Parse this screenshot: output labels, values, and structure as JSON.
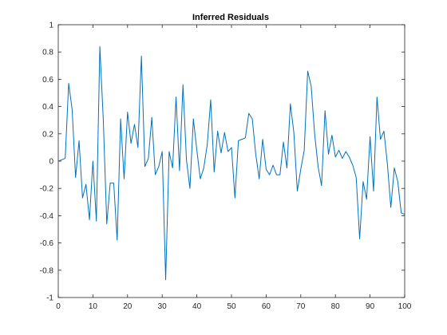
{
  "chart_data": {
    "type": "line",
    "title": "Inferred Residuals",
    "xlabel": "",
    "ylabel": "",
    "xlim": [
      0,
      100
    ],
    "ylim": [
      -1,
      1
    ],
    "x_ticks": [
      0,
      10,
      20,
      30,
      40,
      50,
      60,
      70,
      80,
      90,
      100
    ],
    "y_ticks": [
      -1,
      -0.8,
      -0.6,
      -0.4,
      -0.2,
      0,
      0.2,
      0.4,
      0.6,
      0.8,
      1
    ],
    "grid": false,
    "legend": "none",
    "series": [
      {
        "color": "#0072bd",
        "x": [
          0,
          1,
          2,
          3,
          4,
          5,
          6,
          7,
          8,
          9,
          10,
          11,
          12,
          13,
          14,
          15,
          16,
          17,
          18,
          19,
          20,
          21,
          22,
          23,
          24,
          25,
          26,
          27,
          28,
          29,
          30,
          31,
          32,
          33,
          34,
          35,
          36,
          37,
          38,
          39,
          40,
          41,
          42,
          43,
          44,
          45,
          46,
          47,
          48,
          49,
          50,
          51,
          52,
          53,
          54,
          55,
          56,
          57,
          58,
          59,
          60,
          61,
          62,
          63,
          64,
          65,
          66,
          67,
          68,
          69,
          70,
          71,
          72,
          73,
          74,
          75,
          76,
          77,
          78,
          79,
          80,
          81,
          82,
          83,
          84,
          85,
          86,
          87,
          88,
          89,
          90,
          91,
          92,
          93,
          94,
          95,
          96,
          97,
          98,
          99,
          100
        ],
        "values": [
          0,
          0.01,
          0.02,
          0.57,
          0.38,
          -0.12,
          0.15,
          -0.27,
          -0.17,
          -0.43,
          0,
          -0.44,
          0.84,
          0.3,
          -0.46,
          -0.16,
          -0.16,
          -0.58,
          0.31,
          -0.13,
          0.36,
          0.13,
          0.27,
          0.1,
          0.77,
          -0.04,
          0.02,
          0.32,
          -0.1,
          -0.04,
          0.07,
          -0.87,
          0.07,
          -0.05,
          0.47,
          -0.07,
          0.56,
          0.01,
          -0.2,
          0.31,
          0.08,
          -0.13,
          -0.05,
          0.12,
          0.45,
          -0.08,
          0.22,
          0.06,
          0.21,
          0.07,
          0.1,
          -0.27,
          0.15,
          0.16,
          0.17,
          0.35,
          0.31,
          0.05,
          -0.13,
          0.16,
          -0.06,
          -0.1,
          -0.03,
          -0.1,
          -0.1,
          0.14,
          -0.05,
          0.42,
          0.21,
          -0.22,
          -0.06,
          0.08,
          0.66,
          0.55,
          0.2,
          -0.04,
          -0.18,
          0.37,
          0.05,
          0.19,
          0.03,
          0.08,
          0.02,
          0.07,
          0.03,
          -0.03,
          -0.12,
          -0.57,
          -0.15,
          -0.28,
          0.18,
          -0.22,
          0.47,
          0.16,
          0.22,
          -0.02,
          -0.34,
          -0.05,
          -0.15,
          -0.38,
          -0.39
        ]
      }
    ]
  }
}
